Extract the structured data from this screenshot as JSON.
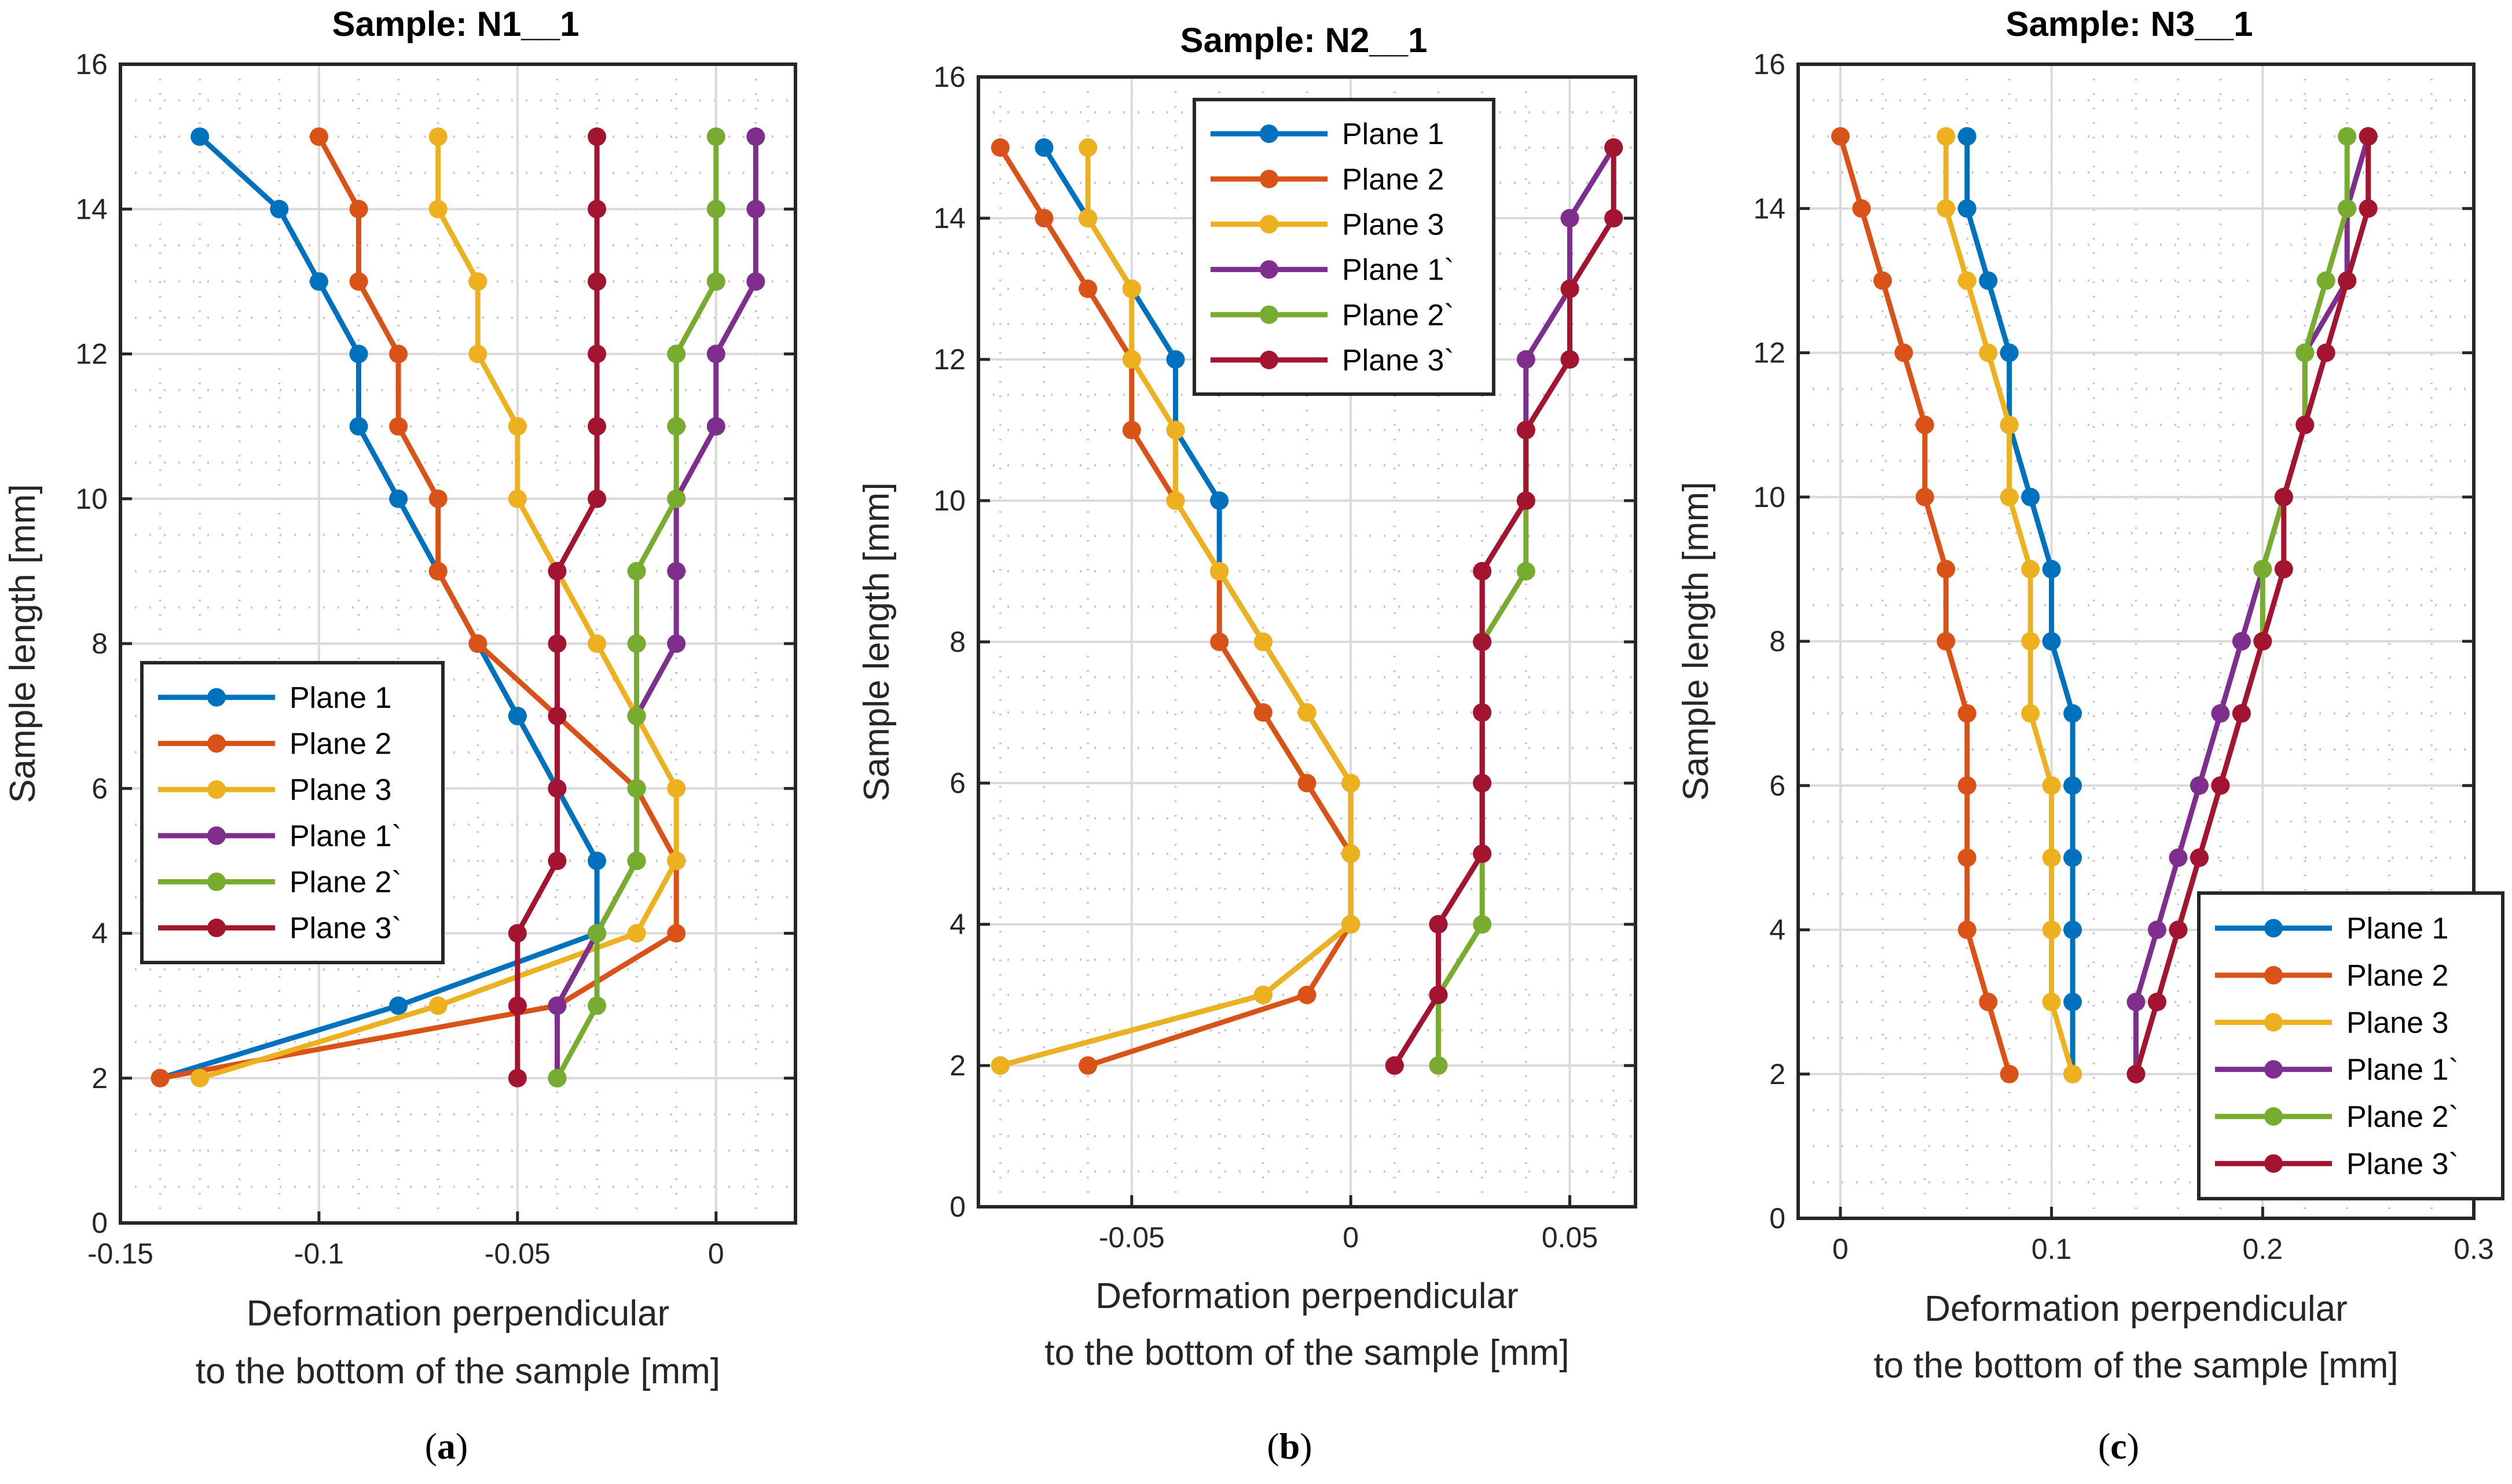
{
  "chart_data": [
    {
      "type": "line",
      "panel_label": {
        "open": "(",
        "letter": "a",
        "close": ")"
      },
      "title": "Sample: N1__1",
      "xlabel": [
        "Deformation perpendicular",
        "to the bottom of the sample [mm]"
      ],
      "ylabel": "Sample length [mm]",
      "xlim": [
        -0.15,
        0.02
      ],
      "ylim": [
        0,
        16
      ],
      "xticks": [
        -0.15,
        -0.1,
        -0.05,
        0
      ],
      "xtick_labels": [
        "-0.15",
        "-0.1",
        "-0.05",
        "0"
      ],
      "yticks": [
        0,
        2,
        4,
        6,
        8,
        10,
        12,
        14,
        16
      ],
      "ytick_labels": [
        "0",
        "2",
        "4",
        "6",
        "8",
        "10",
        "12",
        "14",
        "16"
      ],
      "x_minor_step": 0.01,
      "y_minor_step": 0.5,
      "grid": "major and minor",
      "legend_position": "lower-left",
      "y": [
        15,
        14,
        13,
        12,
        11,
        10,
        9,
        8,
        7,
        6,
        5,
        4,
        3,
        2
      ],
      "series": [
        {
          "name": "Plane 1",
          "color": "#0072BD",
          "values": [
            -0.13,
            -0.11,
            -0.1,
            -0.09,
            -0.09,
            -0.08,
            -0.07,
            -0.06,
            -0.05,
            -0.04,
            -0.03,
            -0.03,
            -0.08,
            -0.14
          ]
        },
        {
          "name": "Plane 2",
          "color": "#D95319",
          "values": [
            -0.1,
            -0.09,
            -0.09,
            -0.08,
            -0.08,
            -0.07,
            -0.07,
            -0.06,
            -0.04,
            -0.02,
            -0.01,
            -0.01,
            -0.04,
            -0.14
          ]
        },
        {
          "name": "Plane 3",
          "color": "#EDB120",
          "values": [
            -0.07,
            -0.07,
            -0.06,
            -0.06,
            -0.05,
            -0.05,
            -0.04,
            -0.03,
            -0.02,
            -0.01,
            -0.01,
            -0.02,
            -0.07,
            -0.13
          ]
        },
        {
          "name": "Plane 1`",
          "color": "#7E2F8E",
          "values": [
            0.01,
            0.01,
            0.01,
            0,
            0,
            -0.01,
            -0.01,
            -0.01,
            -0.02,
            -0.02,
            -0.02,
            -0.03,
            -0.04,
            -0.04
          ]
        },
        {
          "name": "Plane 2`",
          "color": "#77AC30",
          "values": [
            0,
            0,
            0,
            -0.01,
            -0.01,
            -0.01,
            -0.02,
            -0.02,
            -0.02,
            -0.02,
            -0.02,
            -0.03,
            -0.03,
            -0.04
          ]
        },
        {
          "name": "Plane 3`",
          "color": "#A2142F",
          "values": [
            -0.03,
            -0.03,
            -0.03,
            -0.03,
            -0.03,
            -0.03,
            -0.04,
            -0.04,
            -0.04,
            -0.04,
            -0.04,
            -0.05,
            -0.05,
            -0.05
          ]
        }
      ]
    },
    {
      "type": "line",
      "panel_label": {
        "open": "(",
        "letter": "b",
        "close": ")"
      },
      "title": "Sample: N2__1",
      "xlabel": [
        "Deformation perpendicular",
        "to the bottom of the sample [mm]"
      ],
      "ylabel": "Sample length [mm]",
      "xlim": [
        -0.085,
        0.065
      ],
      "ylim": [
        0,
        16
      ],
      "xticks": [
        -0.05,
        0,
        0.05
      ],
      "xtick_labels": [
        "-0.05",
        "0",
        "0.05"
      ],
      "yticks": [
        0,
        2,
        4,
        6,
        8,
        10,
        12,
        14,
        16
      ],
      "ytick_labels": [
        "0",
        "2",
        "4",
        "6",
        "8",
        "10",
        "12",
        "14",
        "16"
      ],
      "x_minor_step": 0.01,
      "y_minor_step": 0.5,
      "grid": "major and minor",
      "legend_position": "top-center",
      "y": [
        15,
        14,
        13,
        12,
        11,
        10,
        9,
        8,
        7,
        6,
        5,
        4,
        3,
        2
      ],
      "series": [
        {
          "name": "Plane 1",
          "color": "#0072BD",
          "values": [
            -0.07,
            -0.06,
            -0.05,
            -0.04,
            -0.04,
            -0.03,
            -0.03,
            -0.02,
            -0.01,
            0,
            0,
            0,
            -0.02,
            -0.08
          ]
        },
        {
          "name": "Plane 2",
          "color": "#D95319",
          "values": [
            -0.08,
            -0.07,
            -0.06,
            -0.05,
            -0.05,
            -0.04,
            -0.03,
            -0.03,
            -0.02,
            -0.01,
            0,
            0,
            -0.01,
            -0.06
          ]
        },
        {
          "name": "Plane 3",
          "color": "#EDB120",
          "values": [
            -0.06,
            -0.06,
            -0.05,
            -0.05,
            -0.04,
            -0.04,
            -0.03,
            -0.02,
            -0.01,
            0,
            0,
            0,
            -0.02,
            -0.08
          ]
        },
        {
          "name": "Plane 1`",
          "color": "#7E2F8E",
          "values": [
            0.06,
            0.05,
            0.05,
            0.04,
            0.04,
            0.04,
            0.03,
            0.03,
            0.03,
            0.03,
            0.03,
            0.02,
            0.02,
            0.01
          ]
        },
        {
          "name": "Plane 2`",
          "color": "#77AC30",
          "values": [
            0.06,
            0.06,
            0.05,
            0.05,
            0.04,
            0.04,
            0.04,
            0.03,
            0.03,
            0.03,
            0.03,
            0.03,
            0.02,
            0.02
          ]
        },
        {
          "name": "Plane 3`",
          "color": "#A2142F",
          "values": [
            0.06,
            0.06,
            0.05,
            0.05,
            0.04,
            0.04,
            0.03,
            0.03,
            0.03,
            0.03,
            0.03,
            0.02,
            0.02,
            0.01
          ]
        }
      ]
    },
    {
      "type": "line",
      "panel_label": {
        "open": "(",
        "letter": "c",
        "close": ")"
      },
      "title": "Sample: N3__1",
      "xlabel": [
        "Deformation perpendicular",
        "to the bottom of the sample [mm]"
      ],
      "ylabel": "Sample length [mm]",
      "xlim": [
        -0.02,
        0.3
      ],
      "ylim": [
        0,
        16
      ],
      "xticks": [
        0,
        0.1,
        0.2,
        0.3
      ],
      "xtick_labels": [
        "0",
        "0.1",
        "0.2",
        "0.3"
      ],
      "yticks": [
        0,
        2,
        4,
        6,
        8,
        10,
        12,
        14,
        16
      ],
      "ytick_labels": [
        "0",
        "2",
        "4",
        "6",
        "8",
        "10",
        "12",
        "14",
        "16"
      ],
      "x_minor_step": 0.02,
      "y_minor_step": 0.5,
      "grid": "major and minor",
      "legend_position": "bottom-right",
      "y": [
        15,
        14,
        13,
        12,
        11,
        10,
        9,
        8,
        7,
        6,
        5,
        4,
        3,
        2
      ],
      "series": [
        {
          "name": "Plane 1",
          "color": "#0072BD",
          "values": [
            0.06,
            0.06,
            0.07,
            0.08,
            0.08,
            0.09,
            0.1,
            0.1,
            0.11,
            0.11,
            0.11,
            0.11,
            0.11,
            0.11
          ]
        },
        {
          "name": "Plane 2",
          "color": "#D95319",
          "values": [
            0,
            0.01,
            0.02,
            0.03,
            0.04,
            0.04,
            0.05,
            0.05,
            0.06,
            0.06,
            0.06,
            0.06,
            0.07,
            0.08
          ]
        },
        {
          "name": "Plane 3",
          "color": "#EDB120",
          "values": [
            0.05,
            0.05,
            0.06,
            0.07,
            0.08,
            0.08,
            0.09,
            0.09,
            0.09,
            0.1,
            0.1,
            0.1,
            0.1,
            0.11
          ]
        },
        {
          "name": "Plane 1`",
          "color": "#7E2F8E",
          "values": [
            0.25,
            0.24,
            0.24,
            0.22,
            0.22,
            0.21,
            0.2,
            0.19,
            0.18,
            0.17,
            0.16,
            0.15,
            0.14,
            0.14
          ]
        },
        {
          "name": "Plane 2`",
          "color": "#77AC30",
          "values": [
            0.24,
            0.24,
            0.23,
            0.22,
            0.22,
            0.21,
            0.2,
            0.2,
            0.19,
            0.18,
            0.17,
            0.16,
            0.15,
            0.14
          ]
        },
        {
          "name": "Plane 3`",
          "color": "#A2142F",
          "values": [
            0.25,
            0.25,
            0.24,
            0.23,
            0.22,
            0.21,
            0.21,
            0.2,
            0.19,
            0.18,
            0.17,
            0.16,
            0.15,
            0.14
          ]
        }
      ]
    }
  ]
}
